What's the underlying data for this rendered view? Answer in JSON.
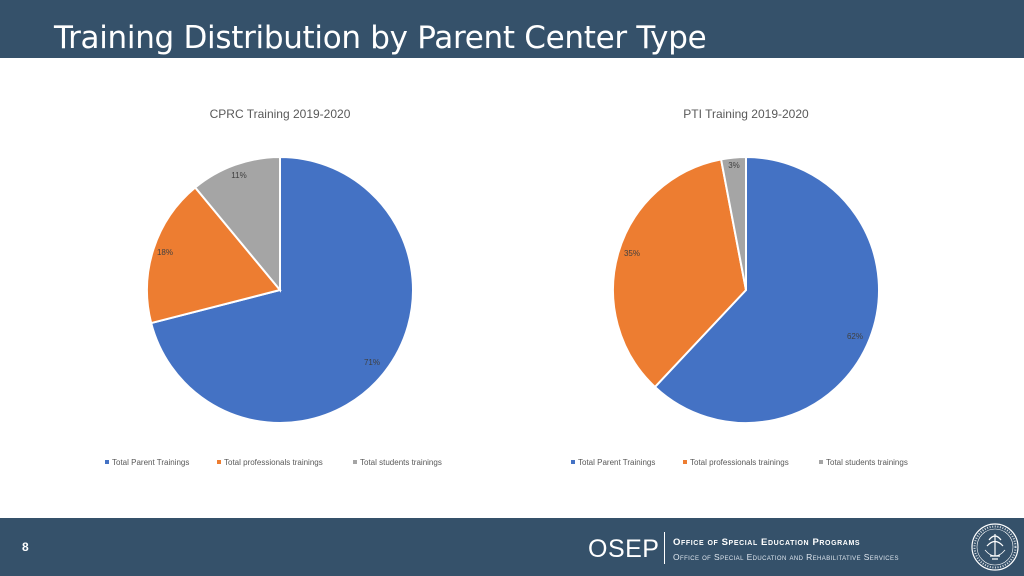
{
  "header": {
    "title": "Training Distribution by Parent Center Type"
  },
  "colors": {
    "header_bg": "#35516a",
    "parent": "#4472c4",
    "professionals": "#ed7d31",
    "students": "#a5a5a5"
  },
  "legend_labels": [
    "Total Parent Trainings",
    "Total professionals trainings",
    "Total students trainings"
  ],
  "chart_data": [
    {
      "type": "pie",
      "title": "CPRC Training 2019-2020",
      "legend_position": "bottom",
      "slices": [
        {
          "label": "Total Parent Trainings",
          "value": 71,
          "display": "71%",
          "color": "#4472c4"
        },
        {
          "label": "Total professionals trainings",
          "value": 18,
          "display": "18%",
          "color": "#ed7d31"
        },
        {
          "label": "Total students trainings",
          "value": 11,
          "display": "11%",
          "color": "#a5a5a5"
        }
      ]
    },
    {
      "type": "pie",
      "title": "PTI Training 2019-2020",
      "legend_position": "bottom",
      "slices": [
        {
          "label": "Total Parent Trainings",
          "value": 62,
          "display": "62%",
          "color": "#4472c4"
        },
        {
          "label": "Total professionals trainings",
          "value": 35,
          "display": "35%",
          "color": "#ed7d31"
        },
        {
          "label": "Total students trainings",
          "value": 3,
          "display": "3%",
          "color": "#a5a5a5"
        }
      ]
    }
  ],
  "footer": {
    "page_number": "8",
    "logo_text": "OSEP",
    "office_line1": "Office of Special Education Programs",
    "office_line2": "Office of Special Education and Rehabilitative Services",
    "seal_icon": "department-seal-icon"
  }
}
